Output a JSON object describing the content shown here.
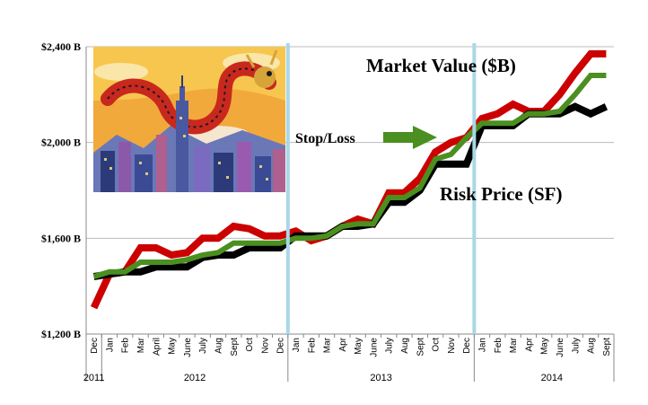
{
  "chart_data": {
    "type": "line",
    "title": "",
    "xlabel": "",
    "ylabel": "",
    "y_ticks": [
      "$1,200 B",
      "$1,600 B",
      "$2,000 B",
      "$2,400 B"
    ],
    "ylim": [
      1200,
      2400
    ],
    "grid": "horizontal",
    "categories": [
      "Dec",
      "Jan",
      "Feb",
      "Mar",
      "April",
      "May",
      "June",
      "July",
      "Aug",
      "Sept",
      "Oct",
      "Nov",
      "Dec",
      "Jan",
      "Feb",
      "Mar",
      "Apr",
      "May",
      "June",
      "July",
      "Aug",
      "Sept",
      "Oct",
      "Nov",
      "Dec",
      "Jan",
      "Feb",
      "Mar",
      "Apr",
      "May",
      "June",
      "July",
      "Aug",
      "Sept"
    ],
    "year_labels": [
      {
        "label": "2011",
        "index": 0
      },
      {
        "label": "2012",
        "index": 6.5
      },
      {
        "label": "2013",
        "index": 18.5
      },
      {
        "label": "2014",
        "index": 29.5
      }
    ],
    "year_dividers": [
      0.5,
      12.5,
      24.5
    ],
    "vertical_markers": [
      12.5,
      24.5
    ],
    "series": [
      {
        "name": "Market Value ($B)",
        "color": "#cc0000",
        "values": [
          1310,
          1450,
          1460,
          1560,
          1560,
          1530,
          1540,
          1600,
          1600,
          1650,
          1640,
          1610,
          1610,
          1630,
          1590,
          1610,
          1650,
          1680,
          1660,
          1790,
          1790,
          1850,
          1960,
          2000,
          2020,
          2100,
          2120,
          2160,
          2130,
          2130,
          2200,
          2290,
          2370,
          2370
        ]
      },
      {
        "name": "",
        "color": "#000000",
        "values": [
          1440,
          1450,
          1460,
          1460,
          1480,
          1480,
          1480,
          1520,
          1530,
          1530,
          1560,
          1560,
          1560,
          1610,
          1610,
          1610,
          1650,
          1650,
          1660,
          1750,
          1750,
          1800,
          1910,
          1910,
          1910,
          2070,
          2070,
          2070,
          2120,
          2120,
          2120,
          2150,
          2120,
          2150
        ]
      },
      {
        "name": "Risk Price (SF)",
        "color": "#4a8f1f",
        "values": [
          1440,
          1460,
          1460,
          1500,
          1500,
          1500,
          1510,
          1530,
          1540,
          1580,
          1580,
          1580,
          1580,
          1600,
          1600,
          1610,
          1650,
          1660,
          1660,
          1770,
          1770,
          1810,
          1930,
          1950,
          2020,
          2080,
          2080,
          2080,
          2120,
          2120,
          2130,
          2200,
          2280,
          2280
        ]
      }
    ],
    "annotations": [
      {
        "text": "Market Value ($B)"
      },
      {
        "text": "Risk Price (SF)"
      },
      {
        "text": "Stop/Loss"
      }
    ]
  },
  "colors": {
    "market_value": "#cc0000",
    "stop_loss_line": "#000000",
    "risk_price": "#4a8f1f",
    "marker": "#a8d8e6",
    "arrow": "#4a8f1f",
    "grid": "#bbbbbb"
  },
  "image": {
    "semantic": "dragon-over-skyline-illustration"
  }
}
